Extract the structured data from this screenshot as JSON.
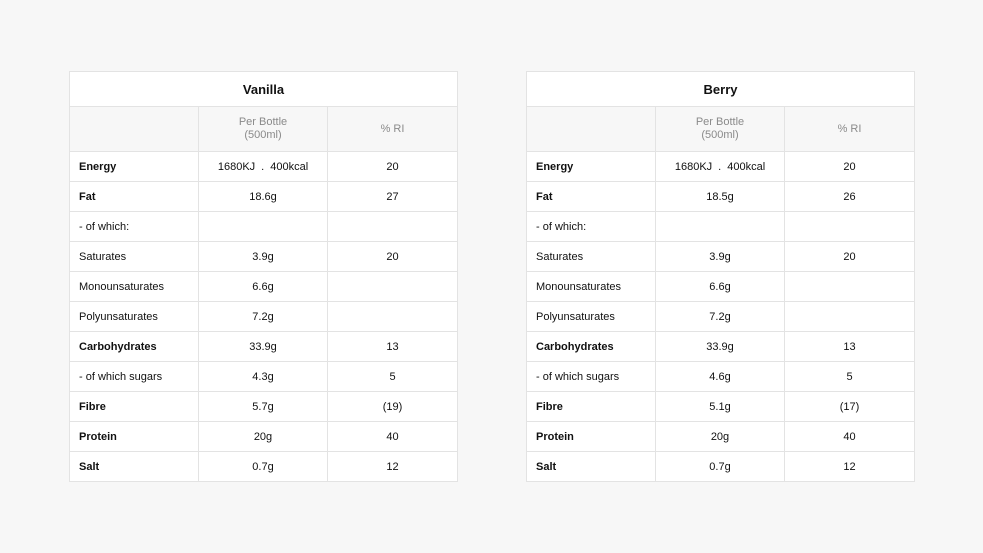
{
  "header": {
    "per_bottle_line1": "Per Bottle",
    "per_bottle_line2": "(500ml)",
    "ri": "% RI"
  },
  "tables": [
    {
      "title": "Vanilla",
      "rows": [
        {
          "label": "Energy",
          "bold": true,
          "kj": "1680KJ",
          "kcal": "400kcal",
          "ri": "20"
        },
        {
          "label": "Fat",
          "bold": true,
          "value": "18.6g",
          "ri": "27"
        },
        {
          "label": "- of which:",
          "bold": false,
          "value": "",
          "ri": ""
        },
        {
          "label": "Saturates",
          "bold": false,
          "value": "3.9g",
          "ri": "20"
        },
        {
          "label": "Monounsaturates",
          "bold": false,
          "value": "6.6g",
          "ri": ""
        },
        {
          "label": "Polyunsaturates",
          "bold": false,
          "value": "7.2g",
          "ri": ""
        },
        {
          "label": "Carbohydrates",
          "bold": true,
          "value": "33.9g",
          "ri": "13"
        },
        {
          "label": "- of which sugars",
          "bold": false,
          "value": "4.3g",
          "ri": "5"
        },
        {
          "label": "Fibre",
          "bold": true,
          "value": "5.7g",
          "ri": "(19)"
        },
        {
          "label": "Protein",
          "bold": true,
          "value": "20g",
          "ri": "40"
        },
        {
          "label": "Salt",
          "bold": true,
          "value": "0.7g",
          "ri": "12"
        }
      ]
    },
    {
      "title": "Berry",
      "rows": [
        {
          "label": "Energy",
          "bold": true,
          "kj": "1680KJ",
          "kcal": "400kcal",
          "ri": "20"
        },
        {
          "label": "Fat",
          "bold": true,
          "value": "18.5g",
          "ri": "26"
        },
        {
          "label": "- of which:",
          "bold": false,
          "value": "",
          "ri": ""
        },
        {
          "label": "Saturates",
          "bold": false,
          "value": "3.9g",
          "ri": "20"
        },
        {
          "label": "Monounsaturates",
          "bold": false,
          "value": "6.6g",
          "ri": ""
        },
        {
          "label": "Polyunsaturates",
          "bold": false,
          "value": "7.2g",
          "ri": ""
        },
        {
          "label": "Carbohydrates",
          "bold": true,
          "value": "33.9g",
          "ri": "13"
        },
        {
          "label": "- of which sugars",
          "bold": false,
          "value": "4.6g",
          "ri": "5"
        },
        {
          "label": "Fibre",
          "bold": true,
          "value": "5.1g",
          "ri": "(17)"
        },
        {
          "label": "Protein",
          "bold": true,
          "value": "20g",
          "ri": "40"
        },
        {
          "label": "Salt",
          "bold": true,
          "value": "0.7g",
          "ri": "12"
        }
      ]
    }
  ]
}
